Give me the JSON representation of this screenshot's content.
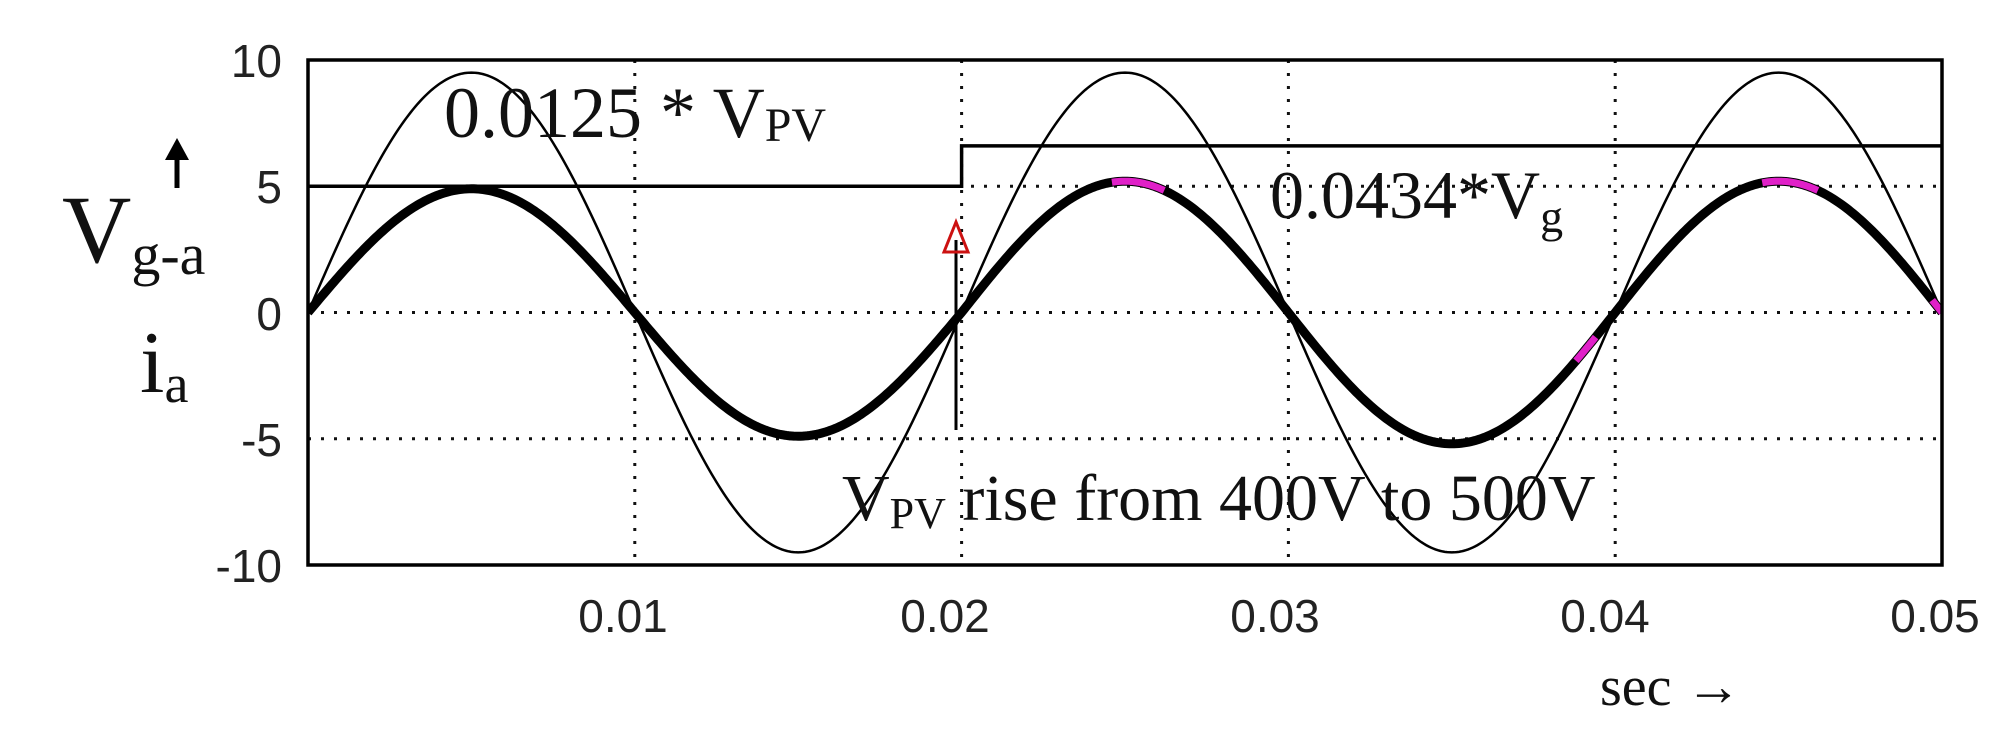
{
  "chart_data": {
    "type": "line",
    "title": "",
    "xlabel": "sec →",
    "ylabel_main": "V",
    "ylabel_main_sub": "g-a",
    "ylabel_second": "i",
    "ylabel_second_sub": "a",
    "xlim": [
      0,
      0.05
    ],
    "ylim": [
      -10,
      10
    ],
    "x_ticks": [
      0.01,
      0.02,
      0.03,
      0.04,
      0.05
    ],
    "x_tick_labels": [
      "0.01",
      "0.02",
      "0.03",
      "0.04",
      "0.05"
    ],
    "y_ticks": [
      10,
      5,
      0,
      -5,
      -10
    ],
    "y_tick_labels": [
      "10",
      "5",
      "0",
      "-5",
      "-10"
    ],
    "grid": true,
    "frequency_hz": 50,
    "series": [
      {
        "style": "thin",
        "amplitude": 9.5,
        "phase_shift": 0
      },
      {
        "style": "thick",
        "amplitude_before": 4.9,
        "amplitude_after": 5.2,
        "phase_shift": 0
      },
      {
        "style": "step",
        "x_step": 0.02,
        "before": 5.0,
        "after": 6.6
      }
    ],
    "annotations": {
      "vpv_label": {
        "main": "0.0125 * V",
        "sub": "PV"
      },
      "vg_label": {
        "main": "0.0434*V",
        "sub": "g"
      },
      "event_label": {
        "pre": "V",
        "sub": "PV",
        "post": " rise from 400V to 500V"
      }
    },
    "colors": {
      "lines": "#000000",
      "highlight": "#e020c8",
      "arrow_head": "#cc1111"
    }
  }
}
